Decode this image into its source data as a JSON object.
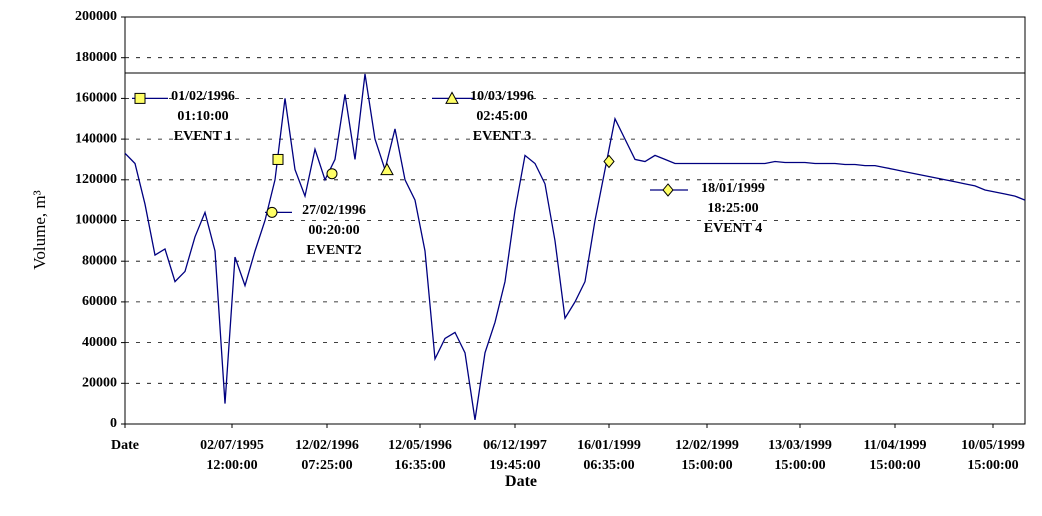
{
  "chart_data": {
    "type": "line",
    "xlabel": "Date",
    "ylabel": "Volume, m³",
    "series": [
      {
        "color": "#000080",
        "values": [
          133000,
          128000,
          108000,
          83000,
          86000,
          70000,
          75000,
          92000,
          104000,
          85000,
          10000,
          82000,
          68000,
          85000,
          100000,
          120000,
          160000,
          125000,
          112000,
          135000,
          120000,
          130000,
          162000,
          130000,
          172000,
          140000,
          125000,
          145000,
          120000,
          110000,
          85000,
          32000,
          42000,
          45000,
          35000,
          2000,
          35000,
          50000,
          70000,
          105000,
          132000,
          128000,
          118000,
          90000,
          52000,
          60000,
          70000,
          100000,
          125000,
          150000,
          140000,
          130000,
          129000,
          132000,
          130000,
          128000,
          128000,
          128000,
          128000,
          128000,
          128000,
          128000,
          128000,
          128000,
          128000,
          129000,
          128500,
          128500,
          128500,
          128000,
          128000,
          128000,
          127500,
          127500,
          127000,
          127000,
          126000,
          125000,
          124000,
          123000,
          122000,
          121000,
          120000,
          119000,
          118000,
          117000,
          115000,
          114000,
          113000,
          112000,
          110000
        ]
      }
    ],
    "xlim": [
      0,
      90
    ],
    "xticks": [
      {
        "value": 0,
        "label": "Date"
      },
      {
        "value": 10.7,
        "label": "02/07/1995\n12:00:00"
      },
      {
        "value": 20.2,
        "label": "12/02/1996\n07:25:00"
      },
      {
        "value": 29.5,
        "label": "12/05/1996\n16:35:00"
      },
      {
        "value": 39,
        "label": "06/12/1997\n19:45:00"
      },
      {
        "value": 48.4,
        "label": "16/01/1999\n06:35:00"
      },
      {
        "value": 58.2,
        "label": "12/02/1999\n15:00:00"
      },
      {
        "value": 67.5,
        "label": "13/03/1999\n15:00:00"
      },
      {
        "value": 77,
        "label": "11/04/1999\n15:00:00"
      },
      {
        "value": 86.8,
        "label": "10/05/1999\n15:00:00"
      }
    ],
    "ylim": [
      0,
      200000
    ],
    "yticks": [
      0,
      20000,
      40000,
      60000,
      80000,
      100000,
      120000,
      140000,
      160000,
      180000,
      200000
    ],
    "grid": true,
    "hline": 172500,
    "annotations": [
      {
        "text": "01/02/1996\n01:10:00\nEVENT 1",
        "marker": "square",
        "points": [
          [
            15.3,
            130000
          ],
          [
            1.5,
            160000
          ]
        ]
      },
      {
        "text": "27/02/1996\n00:20:00\nEVENT2",
        "marker": "circle",
        "points": [
          [
            20.7,
            123000
          ],
          [
            14.7,
            104000
          ]
        ]
      },
      {
        "text": "10/03/1996\n02:45:00\nEVENT 3",
        "marker": "triangle",
        "points": [
          [
            26.2,
            125000
          ],
          [
            32.7,
            160000
          ]
        ]
      },
      {
        "text": "18/01/1999\n18:25:00\nEVENT 4",
        "marker": "diamond",
        "points": [
          [
            48.4,
            129000
          ],
          [
            54.3,
            115000
          ]
        ]
      }
    ]
  }
}
